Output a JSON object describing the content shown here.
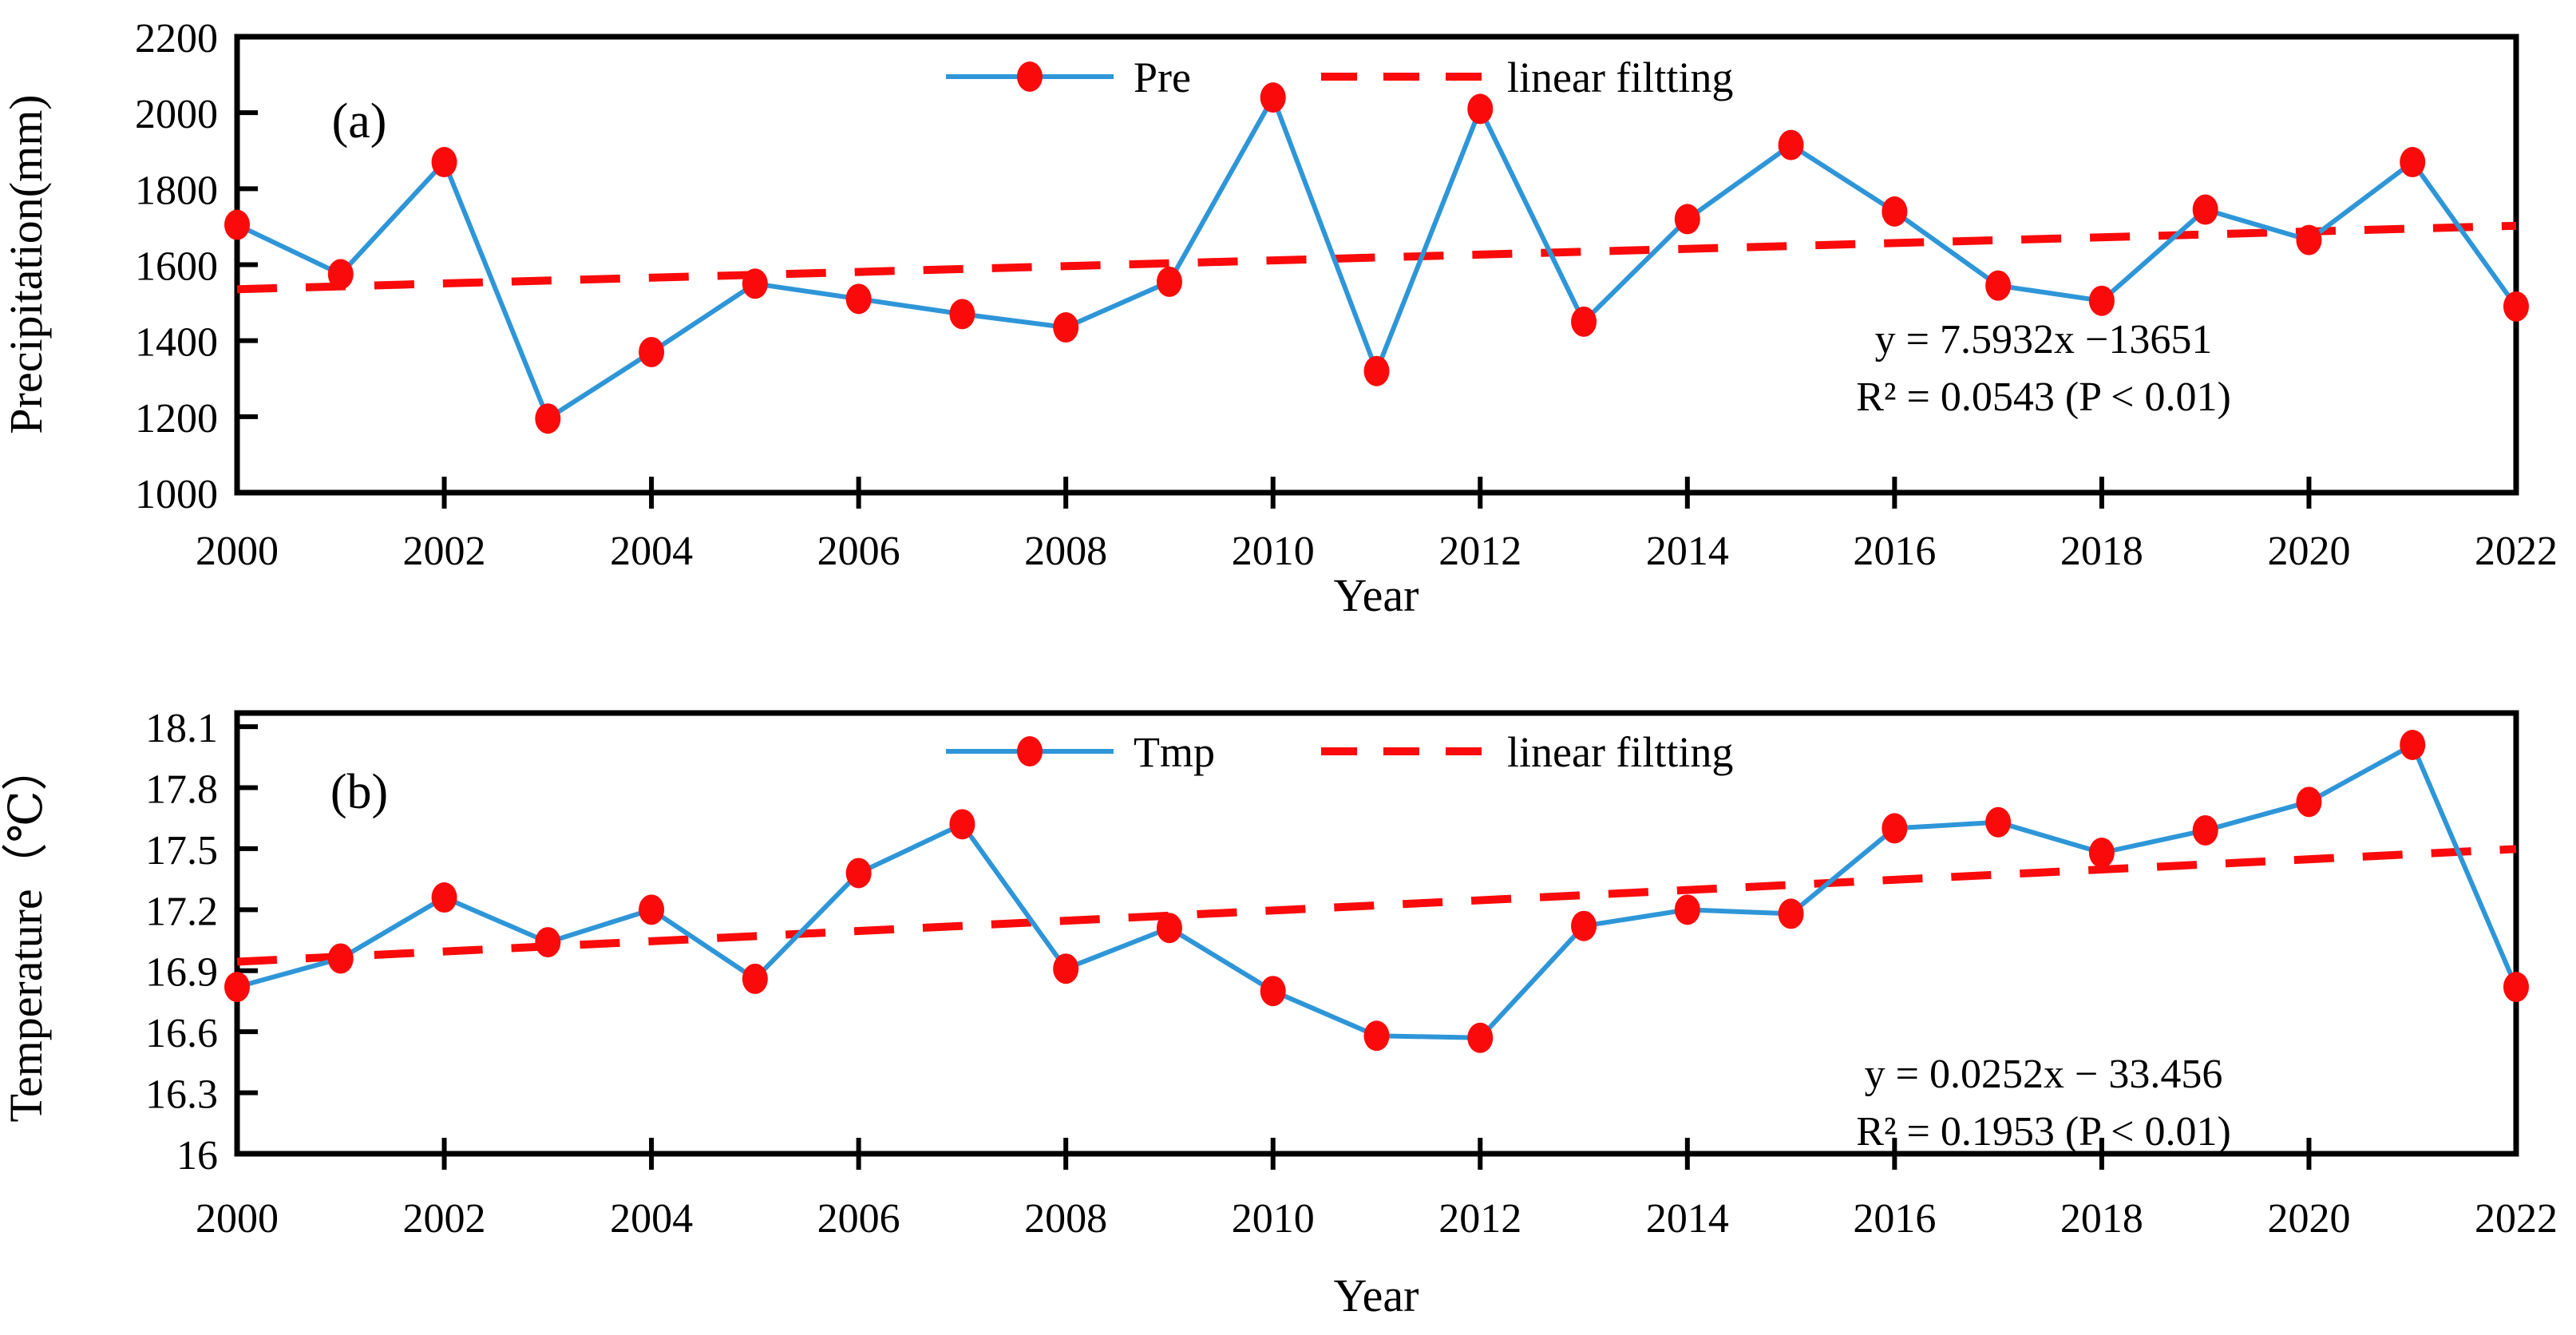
{
  "styles": {
    "line_color": "#2E96D8",
    "marker_color": "#FA0A0A",
    "trend_color": "#FA0A0A",
    "axis_color": "#000000",
    "background_color": "#FFFFFF"
  },
  "chart_data": [
    {
      "id": "precipitation-panel",
      "type": "line",
      "panel_label": "(a)",
      "title": "",
      "xlabel": "Year",
      "ylabel": "Precipitation(mm)",
      "ylim": [
        1000,
        2200
      ],
      "yticks": [
        1000,
        1200,
        1400,
        1600,
        1800,
        2000,
        2200
      ],
      "ytick_labels": [
        "1000",
        "1200",
        "1400",
        "1600",
        "1800",
        "2000",
        "2200"
      ],
      "xticks": [
        2000,
        2002,
        2004,
        2006,
        2008,
        2010,
        2012,
        2014,
        2016,
        2018,
        2020,
        2022
      ],
      "x": [
        2000,
        2001,
        2002,
        2003,
        2004,
        2005,
        2006,
        2007,
        2008,
        2009,
        2010,
        2011,
        2012,
        2013,
        2014,
        2015,
        2016,
        2017,
        2018,
        2019,
        2020,
        2021,
        2022
      ],
      "series": [
        {
          "name": "Pre",
          "values": [
            1705,
            1575,
            1870,
            1195,
            1370,
            1550,
            1510,
            1470,
            1435,
            1555,
            2040,
            1320,
            2010,
            1450,
            1720,
            1915,
            1740,
            1545,
            1505,
            1745,
            1665,
            1870,
            1490
          ]
        }
      ],
      "trend": {
        "label": "linear filtting",
        "slope": 7.5932,
        "intercept": -13651,
        "equation": "y = 7.5932x −13651",
        "r2": "R² = 0.0543 (P < 0.01)"
      },
      "legend_position": "top-center",
      "grid": "off"
    },
    {
      "id": "temperature-panel",
      "type": "line",
      "panel_label": "(b)",
      "title": "",
      "xlabel": "Year",
      "ylabel": "Temperature（℃）",
      "ylim": [
        16,
        18.1
      ],
      "yticks": [
        16,
        16.3,
        16.6,
        16.9,
        17.2,
        17.5,
        17.8,
        18.1
      ],
      "ytick_labels": [
        "16",
        "16.3",
        "16.6",
        "16.9",
        "17.2",
        "17.5",
        "17.8",
        "18.1"
      ],
      "xticks": [
        2000,
        2002,
        2004,
        2006,
        2008,
        2010,
        2012,
        2014,
        2016,
        2018,
        2020,
        2022
      ],
      "x": [
        2000,
        2001,
        2002,
        2003,
        2004,
        2005,
        2006,
        2007,
        2008,
        2009,
        2010,
        2011,
        2012,
        2013,
        2014,
        2015,
        2016,
        2017,
        2018,
        2019,
        2020,
        2021,
        2022
      ],
      "series": [
        {
          "name": "Tmp",
          "values": [
            16.82,
            16.96,
            17.26,
            17.04,
            17.2,
            16.86,
            17.38,
            17.62,
            16.91,
            17.11,
            16.8,
            16.58,
            16.57,
            17.12,
            17.2,
            17.18,
            17.6,
            17.63,
            17.48,
            17.59,
            17.73,
            18.01,
            16.82
          ]
        }
      ],
      "trend": {
        "label": "linear filtting",
        "slope": 0.0252,
        "intercept": -33.456,
        "equation": "y = 0.0252x − 33.456",
        "r2": "R² = 0.1953 (P < 0.01)"
      },
      "legend_position": "top-center",
      "grid": "off"
    }
  ]
}
